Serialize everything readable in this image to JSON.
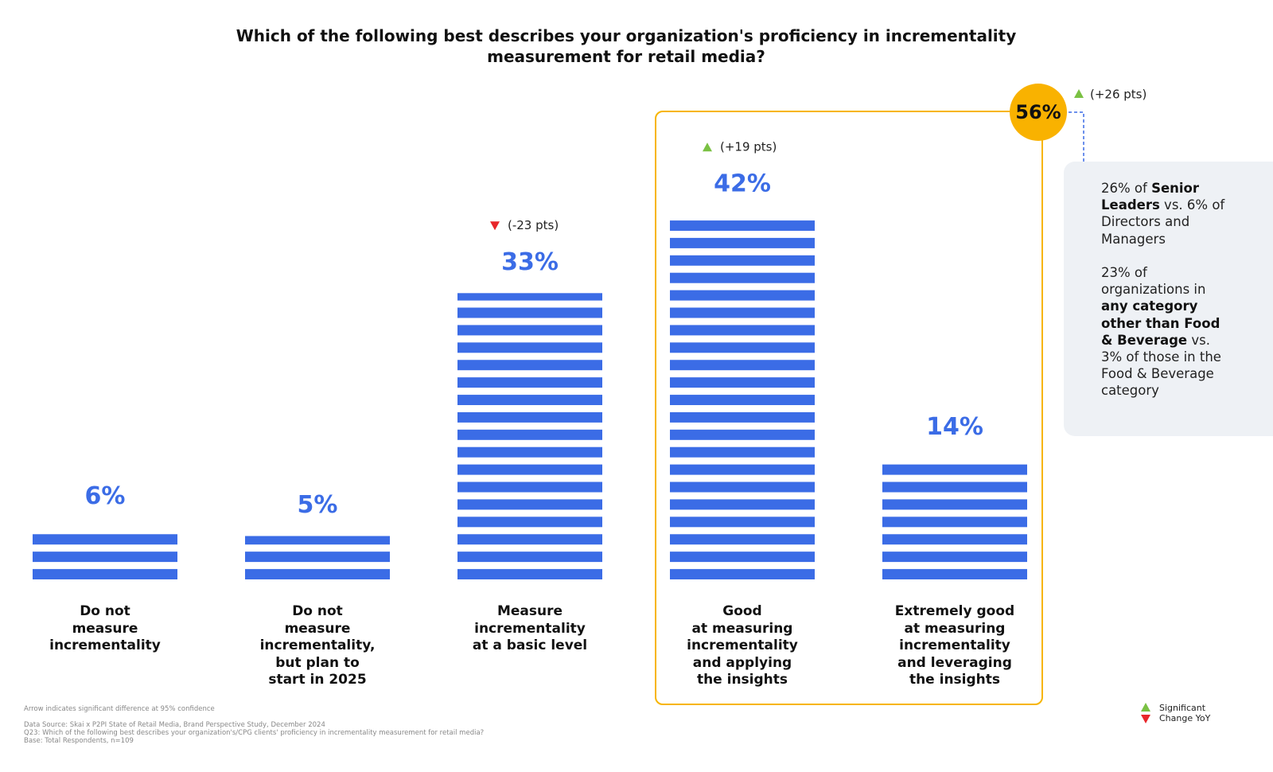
{
  "chart_data": {
    "type": "bar",
    "title": "Which of the following best describes your organization's proficiency in incrementality measurement for retail media?",
    "categories": [
      "Do not\nmeasure\nincrementality",
      "Do not\nmeasure\nincrementality,\nbut plan to\nstart in 2025",
      "Measure\nincrementality\nat a basic level",
      "Good\nat measuring\nincrementality\nand applying\nthe insights",
      "Extremely good\nat measuring\nincrementality\nand leveraging\nthe insights"
    ],
    "values": [
      6,
      5,
      33,
      42,
      14
    ],
    "value_labels": [
      "6%",
      "5%",
      "33%",
      "42%",
      "14%"
    ],
    "color": "#3b6ce6",
    "changes": [
      null,
      null,
      "(-23 pts)",
      "(+19 pts)",
      null
    ],
    "change_directions": [
      null,
      null,
      "down",
      "up",
      null
    ],
    "highlight": {
      "value": 56,
      "value_label": "56%",
      "change": "(+26 pts)",
      "change_direction": "up",
      "color": "#f9b200"
    },
    "notes": [
      [
        "26% of ",
        "Senior Leaders",
        " vs. 6% of Directors and Managers"
      ],
      [
        "23% of organizations in ",
        "any category other than Food & Beverage",
        " vs. 3% of those in the Food & Beverage category"
      ]
    ],
    "footnotes": [
      "Arrow indicates significant difference at 95% confidence",
      "Data Source: Skai x P2PI State of Retail Media, Brand Perspective Study, December 2024",
      "Q23: Which of the following best describes your organization's/CPG clients' proficiency in incrementality measurement for retail media?",
      "Base:  Total Respondents, n=109"
    ],
    "legend": {
      "label": "Significant Change YoY",
      "up_color": "#7ac143",
      "down_color": "#e8262a"
    }
  }
}
